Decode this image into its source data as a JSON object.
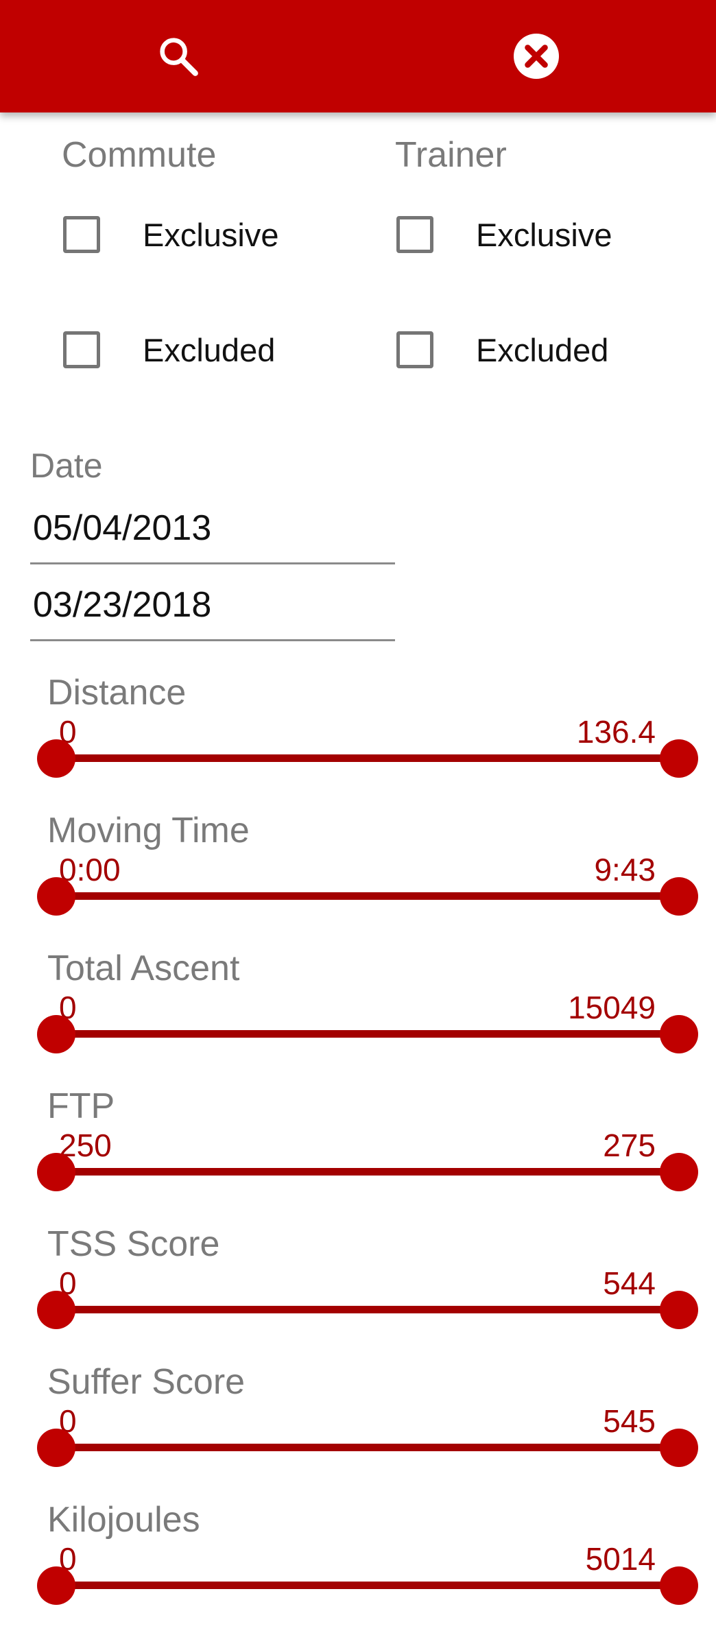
{
  "toolbar": {
    "search_icon": "search-icon",
    "close_icon": "close-circle-icon"
  },
  "commute": {
    "title": "Commute",
    "exclusive_label": "Exclusive",
    "exclusive_checked": false,
    "excluded_label": "Excluded",
    "excluded_checked": false
  },
  "trainer": {
    "title": "Trainer",
    "exclusive_label": "Exclusive",
    "exclusive_checked": false,
    "excluded_label": "Excluded",
    "excluded_checked": false
  },
  "date": {
    "title": "Date",
    "start": "05/04/2013",
    "end": "03/23/2018"
  },
  "sliders": [
    {
      "label": "Distance",
      "min": "0",
      "max": "136.4"
    },
    {
      "label": "Moving Time",
      "min": "0:00",
      "max": "9:43"
    },
    {
      "label": "Total Ascent",
      "min": "0",
      "max": "15049"
    },
    {
      "label": "FTP",
      "min": "250",
      "max": "275"
    },
    {
      "label": "TSS Score",
      "min": "0",
      "max": "544"
    },
    {
      "label": "Suffer Score",
      "min": "0",
      "max": "545"
    },
    {
      "label": "Kilojoules",
      "min": "0",
      "max": "5014"
    }
  ],
  "colors": {
    "accent": "#c00000",
    "slider_value": "#a30000",
    "label_gray": "#7a7a7a"
  }
}
